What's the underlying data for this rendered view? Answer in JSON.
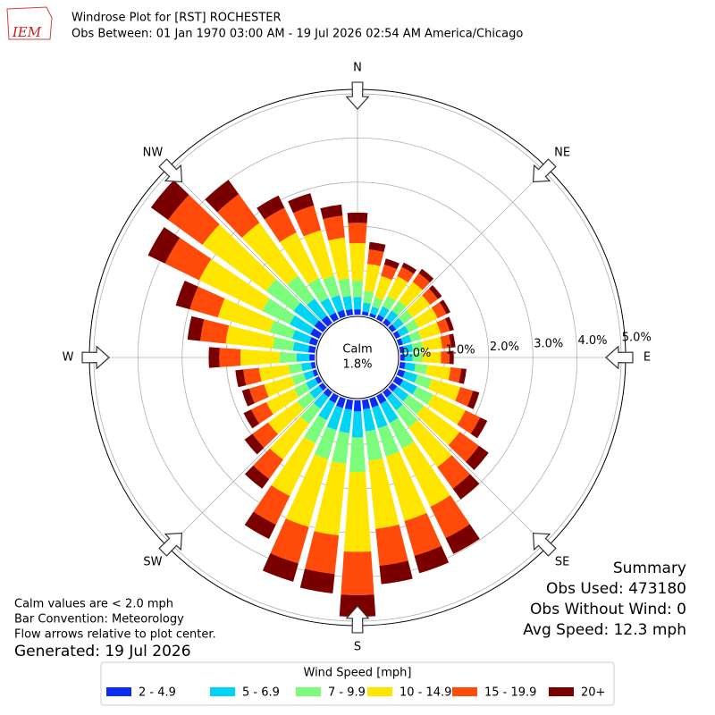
{
  "chart_data": {
    "type": "windrose",
    "logo_text": "IEM",
    "title": "Windrose Plot for [RST] ROCHESTER",
    "subtitle": "Obs Between: 01 Jan 1970 03:00 AM - 19 Jul 2026 02:54 AM America/Chicago",
    "compass": [
      "N",
      "NE",
      "E",
      "SE",
      "S",
      "SW",
      "W",
      "NW"
    ],
    "directions": [
      0,
      10,
      20,
      30,
      40,
      50,
      60,
      70,
      80,
      90,
      100,
      110,
      120,
      130,
      140,
      150,
      160,
      170,
      180,
      190,
      200,
      210,
      220,
      230,
      240,
      250,
      260,
      270,
      280,
      290,
      300,
      310,
      320,
      330,
      340,
      350
    ],
    "rlim": [
      0,
      5.1
    ],
    "rticks": [
      {
        "value": 0,
        "label": "0.0%"
      },
      {
        "value": 1,
        "label": "1.0%"
      },
      {
        "value": 2,
        "label": "2.0%"
      },
      {
        "value": 3,
        "label": "3.0%"
      },
      {
        "value": 4,
        "label": "4.0%"
      },
      {
        "value": 5,
        "label": "5.0%"
      }
    ],
    "calm": {
      "label": "Calm",
      "value": 1.8,
      "value_label": "1.8%"
    },
    "legend_title": "Wind Speed [mph]",
    "series": [
      {
        "name": "2 - 4.9",
        "color": "#0a2cf5",
        "values": [
          0.12,
          0.08,
          0.07,
          0.11,
          0.12,
          0.11,
          0.11,
          0.1,
          0.1,
          0.1,
          0.12,
          0.15,
          0.18,
          0.14,
          0.15,
          0.2,
          0.21,
          0.21,
          0.25,
          0.22,
          0.22,
          0.18,
          0.14,
          0.11,
          0.1,
          0.09,
          0.09,
          0.12,
          0.15,
          0.17,
          0.22,
          0.24,
          0.2,
          0.16,
          0.15,
          0.13
        ]
      },
      {
        "name": "5 - 6.9",
        "color": "#00d4f5",
        "values": [
          0.28,
          0.2,
          0.16,
          0.21,
          0.23,
          0.21,
          0.21,
          0.2,
          0.19,
          0.18,
          0.23,
          0.29,
          0.35,
          0.32,
          0.36,
          0.48,
          0.49,
          0.5,
          0.59,
          0.53,
          0.52,
          0.43,
          0.32,
          0.26,
          0.23,
          0.21,
          0.22,
          0.29,
          0.35,
          0.4,
          0.52,
          0.58,
          0.48,
          0.37,
          0.35,
          0.3
        ]
      },
      {
        "name": "7 - 9.9",
        "color": "#7cfc7c",
        "values": [
          0.37,
          0.27,
          0.22,
          0.26,
          0.27,
          0.25,
          0.25,
          0.23,
          0.23,
          0.22,
          0.27,
          0.34,
          0.41,
          0.43,
          0.48,
          0.64,
          0.66,
          0.67,
          0.78,
          0.7,
          0.69,
          0.58,
          0.43,
          0.35,
          0.3,
          0.28,
          0.29,
          0.38,
          0.46,
          0.53,
          0.69,
          0.77,
          0.64,
          0.5,
          0.46,
          0.4
        ]
      },
      {
        "name": "10 - 14.9",
        "color": "#ffe600",
        "values": [
          0.85,
          0.61,
          0.5,
          0.5,
          0.53,
          0.49,
          0.48,
          0.46,
          0.44,
          0.42,
          0.53,
          0.67,
          0.81,
          1.0,
          1.11,
          1.47,
          1.52,
          1.55,
          1.81,
          1.63,
          1.59,
          1.33,
          1.0,
          0.81,
          0.7,
          0.65,
          0.67,
          0.89,
          1.07,
          1.22,
          1.59,
          1.78,
          1.48,
          1.15,
          1.07,
          0.93
        ]
      },
      {
        "name": "15 - 19.9",
        "color": "#ff4a0a",
        "values": [
          0.46,
          0.33,
          0.27,
          0.23,
          0.24,
          0.22,
          0.22,
          0.21,
          0.2,
          0.19,
          0.24,
          0.3,
          0.37,
          0.54,
          0.6,
          0.79,
          0.82,
          0.84,
          0.98,
          0.88,
          0.86,
          0.72,
          0.54,
          0.44,
          0.38,
          0.35,
          0.36,
          0.48,
          0.58,
          0.66,
          0.86,
          0.96,
          0.8,
          0.62,
          0.58,
          0.5
        ]
      },
      {
        "name": "20+",
        "color": "#7a0000",
        "values": [
          0.23,
          0.17,
          0.14,
          0.11,
          0.12,
          0.11,
          0.1,
          0.1,
          0.1,
          0.1,
          0.12,
          0.15,
          0.18,
          0.27,
          0.3,
          0.4,
          0.41,
          0.42,
          0.49,
          0.44,
          0.43,
          0.36,
          0.27,
          0.22,
          0.19,
          0.17,
          0.18,
          0.24,
          0.29,
          0.33,
          0.43,
          0.48,
          0.4,
          0.31,
          0.29,
          0.25
        ]
      }
    ],
    "notes": [
      "Calm values are < 2.0 mph",
      "Bar Convention: Meteorology",
      "Flow arrows relative to plot center."
    ],
    "generated": "Generated: 19 Jul 2026",
    "summary": [
      "Summary",
      "Obs Used: 473180",
      "Obs Without Wind: 0",
      "Avg Speed: 12.3 mph"
    ]
  }
}
